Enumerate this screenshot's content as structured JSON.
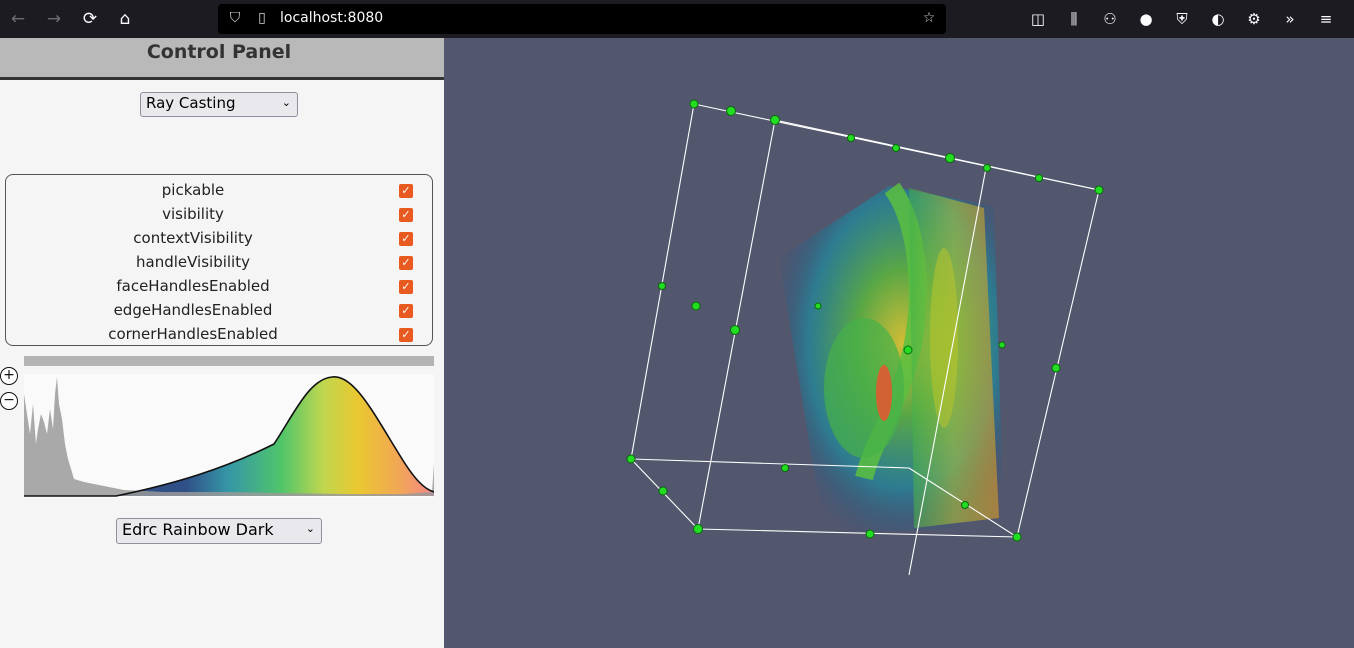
{
  "browser": {
    "url": "localhost:8080",
    "icons": [
      "back-icon",
      "forward-icon",
      "reload-icon",
      "home-icon",
      "shield-icon",
      "page-icon",
      "bookmark-star-icon",
      "pocket-icon",
      "library-icon",
      "extension-icon",
      "colorpicker-icon",
      "ublock-icon",
      "cookie-icon",
      "settings-gear-icon",
      "overflow-icon",
      "menu-icon"
    ]
  },
  "panel": {
    "title": "Control Panel",
    "render_mode": "Ray Casting",
    "properties": [
      {
        "label": "pickable",
        "checked": true
      },
      {
        "label": "visibility",
        "checked": true
      },
      {
        "label": "contextVisibility",
        "checked": true
      },
      {
        "label": "handleVisibility",
        "checked": true
      },
      {
        "label": "faceHandlesEnabled",
        "checked": true
      },
      {
        "label": "edgeHandlesEnabled",
        "checked": true
      },
      {
        "label": "cornerHandlesEnabled",
        "checked": true
      }
    ],
    "colormap_preset": "Edrc Rainbow Dark",
    "zoom_in": "+",
    "zoom_out": "−"
  },
  "colors": {
    "checkbox_accent": "#e85a1f",
    "viewport_bg": "#52576e",
    "handle_color": "#22dd22"
  }
}
